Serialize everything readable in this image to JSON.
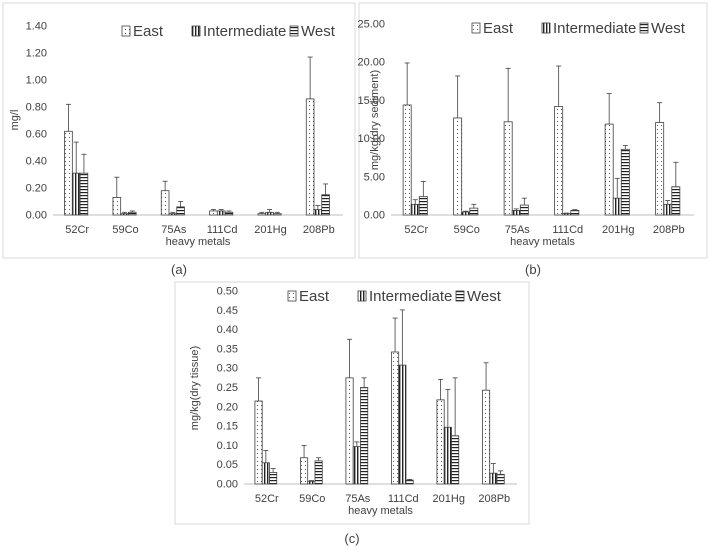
{
  "legend_entries": [
    "East",
    "Intermediate",
    "West"
  ],
  "chart_data": [
    {
      "type": "bar",
      "panel_label": "(a)",
      "xlabel": "heavy metals",
      "ylabel": "mg/l",
      "ylim": [
        0,
        1.4
      ],
      "y_ticks": [
        "0.00",
        "0.20",
        "0.40",
        "0.60",
        "0.80",
        "1.00",
        "1.20",
        "1.40"
      ],
      "categories": [
        "52Cr",
        "59Co",
        "75As",
        "111Cd",
        "201Hg",
        "208Pb"
      ],
      "legend_position": "top-right",
      "grid": false,
      "series": [
        {
          "name": "East",
          "values": [
            0.62,
            0.13,
            0.18,
            0.03,
            0.01,
            0.86
          ],
          "errors": [
            0.2,
            0.15,
            0.07,
            0.01,
            0.01,
            0.31
          ]
        },
        {
          "name": "Intermediate",
          "values": [
            0.31,
            0.01,
            0.01,
            0.03,
            0.02,
            0.04
          ],
          "errors": [
            0.23,
            0.01,
            0.01,
            0.01,
            0.02,
            0.03
          ]
        },
        {
          "name": "West",
          "values": [
            0.31,
            0.02,
            0.06,
            0.02,
            0.01,
            0.15
          ],
          "errors": [
            0.14,
            0.01,
            0.04,
            0.01,
            0.01,
            0.08
          ]
        }
      ]
    },
    {
      "type": "bar",
      "panel_label": "(b)",
      "xlabel": "heavy metals",
      "ylabel": "mg/kg(dry sediment)",
      "ylim": [
        0,
        25
      ],
      "y_ticks": [
        "0.00",
        "5.00",
        "10.00",
        "15.00",
        "20.00",
        "25.00"
      ],
      "categories": [
        "52Cr",
        "59Co",
        "75As",
        "111Cd",
        "201Hg",
        "208Pb"
      ],
      "legend_position": "top-right",
      "grid": false,
      "series": [
        {
          "name": "East",
          "values": [
            14.4,
            12.7,
            12.2,
            14.2,
            11.9,
            12.1
          ],
          "errors": [
            5.5,
            5.5,
            7.0,
            5.3,
            4.0,
            2.6
          ]
        },
        {
          "name": "Intermediate",
          "values": [
            1.4,
            0.4,
            0.6,
            0.2,
            2.2,
            1.4
          ],
          "errors": [
            0.6,
            0.1,
            0.2,
            0.05,
            2.6,
            0.5
          ]
        },
        {
          "name": "West",
          "values": [
            2.4,
            0.9,
            1.3,
            0.6,
            8.6,
            3.7
          ],
          "errors": [
            2.0,
            0.5,
            0.9,
            0.1,
            0.5,
            3.2
          ]
        }
      ]
    },
    {
      "type": "bar",
      "panel_label": "(c)",
      "xlabel": "heavy metals",
      "ylabel": "mg/kg(dry tissue)",
      "ylim": [
        0,
        0.5
      ],
      "y_ticks": [
        "0.00",
        "0.05",
        "0.10",
        "0.15",
        "0.20",
        "0.25",
        "0.30",
        "0.35",
        "0.40",
        "0.45",
        "0.50"
      ],
      "categories": [
        "52Cr",
        "59Co",
        "75As",
        "111Cd",
        "201Hg",
        "208Pb"
      ],
      "legend_position": "top-right",
      "grid": false,
      "series": [
        {
          "name": "East",
          "values": [
            0.215,
            0.068,
            0.275,
            0.342,
            0.218,
            0.243
          ],
          "errors": [
            0.06,
            0.032,
            0.1,
            0.088,
            0.053,
            0.071
          ]
        },
        {
          "name": "Intermediate",
          "values": [
            0.055,
            0.007,
            0.097,
            0.308,
            0.147,
            0.028
          ],
          "errors": [
            0.032,
            0.002,
            0.012,
            0.143,
            0.098,
            0.025
          ]
        },
        {
          "name": "West",
          "values": [
            0.03,
            0.06,
            0.25,
            0.01,
            0.125,
            0.025
          ],
          "errors": [
            0.01,
            0.008,
            0.025,
            0.002,
            0.15,
            0.009
          ]
        }
      ]
    }
  ]
}
